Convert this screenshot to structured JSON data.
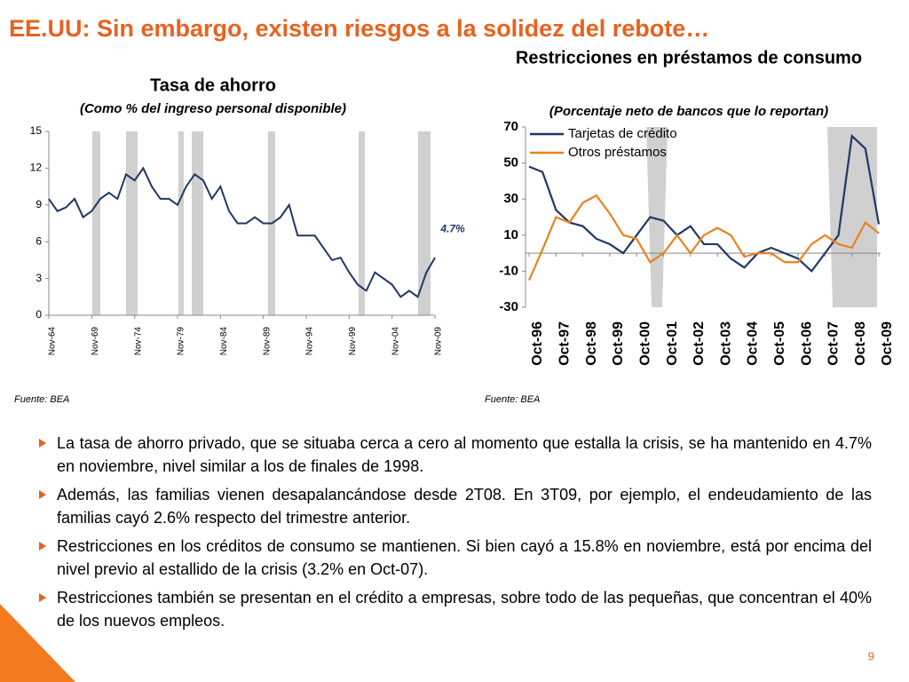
{
  "title": "EE.UU: Sin embargo, existen riesgos a la solidez del rebote…",
  "chart_data": [
    {
      "type": "line",
      "title": "Tasa de ahorro",
      "subtitle": "(Como % del ingreso personal disponible)",
      "categories": [
        "Nov-64",
        null,
        null,
        null,
        null,
        "Nov-69",
        null,
        null,
        null,
        null,
        "Nov-74",
        null,
        null,
        null,
        null,
        "Nov-79",
        null,
        null,
        null,
        null,
        "Nov-84",
        null,
        null,
        null,
        null,
        "Nov-89",
        null,
        null,
        null,
        null,
        "Nov-94",
        null,
        null,
        null,
        null,
        "Nov-99",
        null,
        null,
        null,
        null,
        "Nov-04",
        null,
        null,
        null,
        null,
        "Nov-09"
      ],
      "series": [
        {
          "name": "Tasa de ahorro",
          "color": "#1f3864",
          "values": [
            9.5,
            8.5,
            8.8,
            9.5,
            8,
            8.5,
            9.5,
            10,
            9.5,
            11.5,
            11,
            12,
            10.5,
            9.5,
            9.5,
            9,
            10.5,
            11.5,
            11,
            9.5,
            10.5,
            8.5,
            7.5,
            7.5,
            8,
            7.5,
            7.5,
            8,
            9,
            6.5,
            6.5,
            6.5,
            5.5,
            4.5,
            4.7,
            3.5,
            2.5,
            2,
            3.5,
            3,
            2.5,
            1.5,
            2,
            1.5,
            3.5,
            4.7
          ]
        }
      ],
      "ylim": [
        0,
        15
      ],
      "yticks": [
        0,
        3,
        6,
        9,
        12,
        15
      ],
      "annotation": "4.7%",
      "source": "Fuente: BEA"
    },
    {
      "type": "line",
      "title": "Restricciones en préstamos de consumo",
      "subtitle": "(Porcentaje neto de bancos que lo reportan)",
      "categories": [
        "Oct-96",
        null,
        "Oct-97",
        null,
        "Oct-98",
        null,
        "Oct-99",
        null,
        "Oct-00",
        null,
        "Oct-01",
        null,
        "Oct-02",
        null,
        "Oct-03",
        null,
        "Oct-04",
        null,
        "Oct-05",
        null,
        "Oct-06",
        null,
        "Oct-07",
        null,
        "Oct-08",
        null,
        "Oct-09"
      ],
      "series": [
        {
          "name": "Tarjetas de crédito",
          "color": "#1f3864",
          "values": [
            48,
            45,
            24,
            17,
            15,
            8,
            5,
            0,
            10,
            20,
            18,
            10,
            15,
            5,
            5,
            -3,
            -8,
            0,
            3,
            0,
            -3,
            -10,
            0,
            10,
            65,
            58,
            16
          ]
        },
        {
          "name": "Otros préstamos",
          "color": "#e8821e",
          "values": [
            -15,
            2,
            20,
            17,
            28,
            32,
            22,
            10,
            8,
            -5,
            0,
            10,
            0,
            10,
            14,
            10,
            -2,
            0,
            0,
            -5,
            -5,
            5,
            10,
            5,
            3,
            17,
            11
          ]
        }
      ],
      "ylim": [
        -30,
        70
      ],
      "yticks": [
        -30,
        -10,
        10,
        30,
        50,
        70
      ],
      "source": "Fuente:  BEA"
    }
  ],
  "bullets": [
    "La tasa de ahorro privado, que se situaba cerca a cero al momento que estalla la crisis, se ha mantenido en 4.7% en noviembre, nivel similar a los de finales de 1998.",
    "Además, las familias vienen desapalancándose desde 2T08. En 3T09, por ejemplo, el endeudamiento de las familias cayó 2.6% respecto del trimestre anterior.",
    "Restricciones en los créditos de consumo se mantienen. Si bien cayó a 15.8% en noviembre, está por encima del nivel previo al estallido de la crisis (3.2% en Oct-07).",
    "Restricciones también se presentan en el crédito a empresas, sobre todo de las pequeñas, que concentran el 40% de los nuevos empleos."
  ],
  "page_number": "9"
}
